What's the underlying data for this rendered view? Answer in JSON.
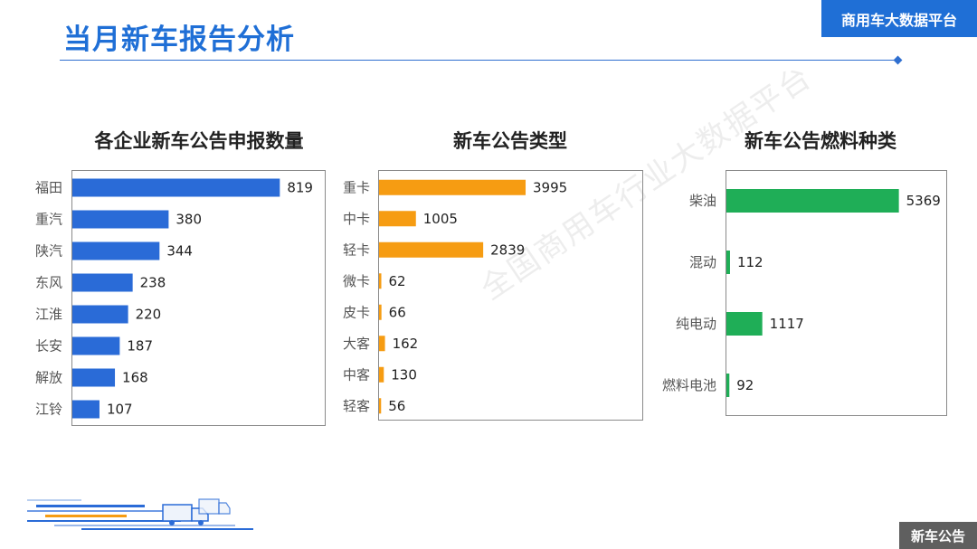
{
  "header": {
    "title": "当月新车报告分析",
    "brand": "商用车大数据平台"
  },
  "watermark": "全国商用车行业大数据平台",
  "footer": {
    "badge": "新车公告"
  },
  "colors": {
    "accent": "#1F6FD6",
    "chart1_bar": "#2A6BD7",
    "chart2_bar": "#F69C12",
    "chart3_bar": "#1FAE57"
  },
  "icons": [
    "truck-icon"
  ],
  "chart_data": [
    {
      "type": "bar",
      "orientation": "horizontal",
      "title": "各企业新车公告申报数量",
      "categories": [
        "福田",
        "重汽",
        "陕汽",
        "东风",
        "江淮",
        "长安",
        "解放",
        "江铃"
      ],
      "values": [
        819,
        380,
        344,
        238,
        220,
        187,
        168,
        107
      ],
      "xlim": [
        0,
        1000
      ],
      "grid": false,
      "legend": "none"
    },
    {
      "type": "bar",
      "orientation": "horizontal",
      "title": "新车公告类型",
      "categories": [
        "重卡",
        "中卡",
        "轻卡",
        "微卡",
        "皮卡",
        "大客",
        "中客",
        "轻客"
      ],
      "values": [
        3995,
        1005,
        2839,
        62,
        66,
        162,
        130,
        56
      ],
      "xlim": [
        0,
        7200
      ],
      "grid": false,
      "legend": "none"
    },
    {
      "type": "bar",
      "orientation": "horizontal",
      "title": "新车公告燃料种类",
      "categories": [
        "柴油",
        "混动",
        "纯电动",
        "燃料电池"
      ],
      "values": [
        5369,
        112,
        1117,
        92
      ],
      "xlim": [
        0,
        6900
      ],
      "grid": false,
      "legend": "none"
    }
  ]
}
